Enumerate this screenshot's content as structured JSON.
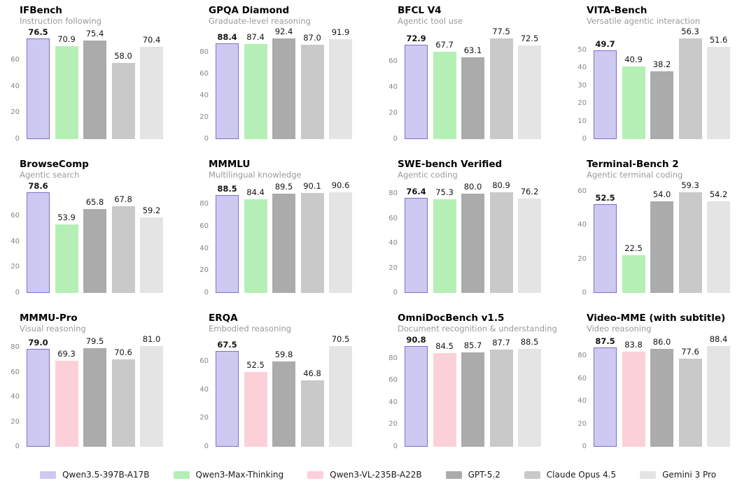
{
  "legend": {
    "items": [
      {
        "label": "Qwen3.5-397B-A17B",
        "fill": "#cdc9f1",
        "border": "#7b70cc"
      },
      {
        "label": "Qwen3-Max-Thinking",
        "fill": "#b5efb6",
        "border": null
      },
      {
        "label": "Qwen3-VL-235B-A22B",
        "fill": "#fcd0d9",
        "border": null
      },
      {
        "label": "GPT-5.2",
        "fill": "#ababab",
        "border": null
      },
      {
        "label": "Claude Opus 4.5",
        "fill": "#c9c9c9",
        "border": null
      },
      {
        "label": "Gemini 3 Pro",
        "fill": "#e4e4e4",
        "border": null
      }
    ]
  },
  "chart_data": [
    {
      "type": "bar",
      "title": "IFBench",
      "subtitle": "Instruction following",
      "yticks": [
        0,
        20,
        40,
        60
      ],
      "grid": false,
      "legend_position": "bottom",
      "series": [
        {
          "name": "Qwen3.5-397B-A17B",
          "value": 76.5,
          "label": "76.5",
          "emphasis": true
        },
        {
          "name": "Qwen3-Max-Thinking",
          "value": 70.9,
          "label": "70.9"
        },
        {
          "name": "GPT-5.2",
          "value": 75.4,
          "label": "75.4"
        },
        {
          "name": "Claude Opus 4.5",
          "value": 58.0,
          "label": "58.0"
        },
        {
          "name": "Gemini 3 Pro",
          "value": 70.4,
          "label": "70.4"
        }
      ]
    },
    {
      "type": "bar",
      "title": "GPQA Diamond",
      "subtitle": "Graduate-level reasoning",
      "yticks": [
        0,
        20,
        40,
        60,
        80
      ],
      "grid": false,
      "series": [
        {
          "name": "Qwen3.5-397B-A17B",
          "value": 88.4,
          "label": "88.4",
          "emphasis": true
        },
        {
          "name": "Qwen3-Max-Thinking",
          "value": 87.4,
          "label": "87.4"
        },
        {
          "name": "GPT-5.2",
          "value": 92.4,
          "label": "92.4"
        },
        {
          "name": "Claude Opus 4.5",
          "value": 87.0,
          "label": "87.0"
        },
        {
          "name": "Gemini 3 Pro",
          "value": 91.9,
          "label": "91.9"
        }
      ]
    },
    {
      "type": "bar",
      "title": "BFCL V4",
      "subtitle": "Agentic tool use",
      "yticks": [
        0,
        20,
        40,
        60
      ],
      "grid": false,
      "series": [
        {
          "name": "Qwen3.5-397B-A17B",
          "value": 72.9,
          "label": "72.9",
          "emphasis": true
        },
        {
          "name": "Qwen3-Max-Thinking",
          "value": 67.7,
          "label": "67.7"
        },
        {
          "name": "GPT-5.2",
          "value": 63.1,
          "label": "63.1"
        },
        {
          "name": "Claude Opus 4.5",
          "value": 77.5,
          "label": "77.5"
        },
        {
          "name": "Gemini 3 Pro",
          "value": 72.5,
          "label": "72.5"
        }
      ]
    },
    {
      "type": "bar",
      "title": "VITA-Bench",
      "subtitle": "Versatile agentic interaction",
      "yticks": [
        0,
        10,
        20,
        30,
        40,
        50
      ],
      "grid": false,
      "series": [
        {
          "name": "Qwen3.5-397B-A17B",
          "value": 49.7,
          "label": "49.7",
          "emphasis": true
        },
        {
          "name": "Qwen3-Max-Thinking",
          "value": 40.9,
          "label": "40.9"
        },
        {
          "name": "GPT-5.2",
          "value": 38.2,
          "label": "38.2"
        },
        {
          "name": "Claude Opus 4.5",
          "value": 56.3,
          "label": "56.3"
        },
        {
          "name": "Gemini 3 Pro",
          "value": 51.6,
          "label": "51.6"
        }
      ]
    },
    {
      "type": "bar",
      "title": "BrowseComp",
      "subtitle": "Agentic search",
      "yticks": [
        0,
        20,
        40,
        60
      ],
      "grid": false,
      "series": [
        {
          "name": "Qwen3.5-397B-A17B",
          "value": 78.6,
          "label": "78.6",
          "emphasis": true
        },
        {
          "name": "Qwen3-Max-Thinking",
          "value": 53.9,
          "label": "53.9"
        },
        {
          "name": "GPT-5.2",
          "value": 65.8,
          "label": "65.8"
        },
        {
          "name": "Claude Opus 4.5",
          "value": 67.8,
          "label": "67.8"
        },
        {
          "name": "Gemini 3 Pro",
          "value": 59.2,
          "label": "59.2"
        }
      ]
    },
    {
      "type": "bar",
      "title": "MMMLU",
      "subtitle": "Multilingual knowledge",
      "yticks": [
        0,
        20,
        40,
        60,
        80
      ],
      "grid": false,
      "series": [
        {
          "name": "Qwen3.5-397B-A17B",
          "value": 88.5,
          "label": "88.5",
          "emphasis": true
        },
        {
          "name": "Qwen3-Max-Thinking",
          "value": 84.4,
          "label": "84.4"
        },
        {
          "name": "GPT-5.2",
          "value": 89.5,
          "label": "89.5"
        },
        {
          "name": "Claude Opus 4.5",
          "value": 90.1,
          "label": "90.1"
        },
        {
          "name": "Gemini 3 Pro",
          "value": 90.6,
          "label": "90.6"
        }
      ]
    },
    {
      "type": "bar",
      "title": "SWE-bench Verified",
      "subtitle": "Agentic coding",
      "yticks": [
        0,
        20,
        40,
        60,
        80
      ],
      "grid": false,
      "series": [
        {
          "name": "Qwen3.5-397B-A17B",
          "value": 76.4,
          "label": "76.4",
          "emphasis": true
        },
        {
          "name": "Qwen3-Max-Thinking",
          "value": 75.3,
          "label": "75.3"
        },
        {
          "name": "GPT-5.2",
          "value": 80.0,
          "label": "80.0"
        },
        {
          "name": "Claude Opus 4.5",
          "value": 80.9,
          "label": "80.9"
        },
        {
          "name": "Gemini 3 Pro",
          "value": 76.2,
          "label": "76.2"
        }
      ]
    },
    {
      "type": "bar",
      "title": "Terminal-Bench 2",
      "subtitle": "Agentic terminal coding",
      "yticks": [
        0,
        20,
        40,
        60
      ],
      "grid": false,
      "series": [
        {
          "name": "Qwen3.5-397B-A17B",
          "value": 52.5,
          "label": "52.5",
          "emphasis": true
        },
        {
          "name": "Qwen3-Max-Thinking",
          "value": 22.5,
          "label": "22.5"
        },
        {
          "name": "GPT-5.2",
          "value": 54.0,
          "label": "54.0"
        },
        {
          "name": "Claude Opus 4.5",
          "value": 59.3,
          "label": "59.3"
        },
        {
          "name": "Gemini 3 Pro",
          "value": 54.2,
          "label": "54.2"
        }
      ]
    },
    {
      "type": "bar",
      "title": "MMMU-Pro",
      "subtitle": "Visual reasoning",
      "yticks": [
        0,
        20,
        40,
        60,
        80
      ],
      "grid": false,
      "series": [
        {
          "name": "Qwen3.5-397B-A17B",
          "value": 79.0,
          "label": "79.0",
          "emphasis": true
        },
        {
          "name": "Qwen3-VL-235B-A22B",
          "value": 69.3,
          "label": "69.3"
        },
        {
          "name": "GPT-5.2",
          "value": 79.5,
          "label": "79.5"
        },
        {
          "name": "Claude Opus 4.5",
          "value": 70.6,
          "label": "70.6"
        },
        {
          "name": "Gemini 3 Pro",
          "value": 81.0,
          "label": "81.0"
        }
      ]
    },
    {
      "type": "bar",
      "title": "ERQA",
      "subtitle": "Embodied reasoning",
      "yticks": [
        0,
        20,
        40,
        60
      ],
      "grid": false,
      "series": [
        {
          "name": "Qwen3.5-397B-A17B",
          "value": 67.5,
          "label": "67.5",
          "emphasis": true
        },
        {
          "name": "Qwen3-VL-235B-A22B",
          "value": 52.5,
          "label": "52.5"
        },
        {
          "name": "GPT-5.2",
          "value": 59.8,
          "label": "59.8"
        },
        {
          "name": "Claude Opus 4.5",
          "value": 46.8,
          "label": "46.8"
        },
        {
          "name": "Gemini 3 Pro",
          "value": 70.5,
          "label": "70.5"
        }
      ]
    },
    {
      "type": "bar",
      "title": "OmniDocBench v1.5",
      "subtitle": "Document recognition & understanding",
      "yticks": [
        0,
        20,
        40,
        60,
        80
      ],
      "grid": false,
      "series": [
        {
          "name": "Qwen3.5-397B-A17B",
          "value": 90.8,
          "label": "90.8",
          "emphasis": true
        },
        {
          "name": "Qwen3-VL-235B-A22B",
          "value": 84.5,
          "label": "84.5"
        },
        {
          "name": "GPT-5.2",
          "value": 85.7,
          "label": "85.7"
        },
        {
          "name": "Claude Opus 4.5",
          "value": 87.7,
          "label": "87.7"
        },
        {
          "name": "Gemini 3 Pro",
          "value": 88.5,
          "label": "88.5"
        }
      ]
    },
    {
      "type": "bar",
      "title": "Video-MME (with subtitle)",
      "subtitle": "Video reasoning",
      "yticks": [
        0,
        20,
        40,
        60,
        80
      ],
      "grid": false,
      "series": [
        {
          "name": "Qwen3.5-397B-A17B",
          "value": 87.5,
          "label": "87.5",
          "emphasis": true
        },
        {
          "name": "Qwen3-VL-235B-A22B",
          "value": 83.8,
          "label": "83.8"
        },
        {
          "name": "GPT-5.2",
          "value": 86.0,
          "label": "86.0"
        },
        {
          "name": "Claude Opus 4.5",
          "value": 77.6,
          "label": "77.6"
        },
        {
          "name": "Gemini 3 Pro",
          "value": 88.4,
          "label": "88.4"
        }
      ]
    }
  ]
}
